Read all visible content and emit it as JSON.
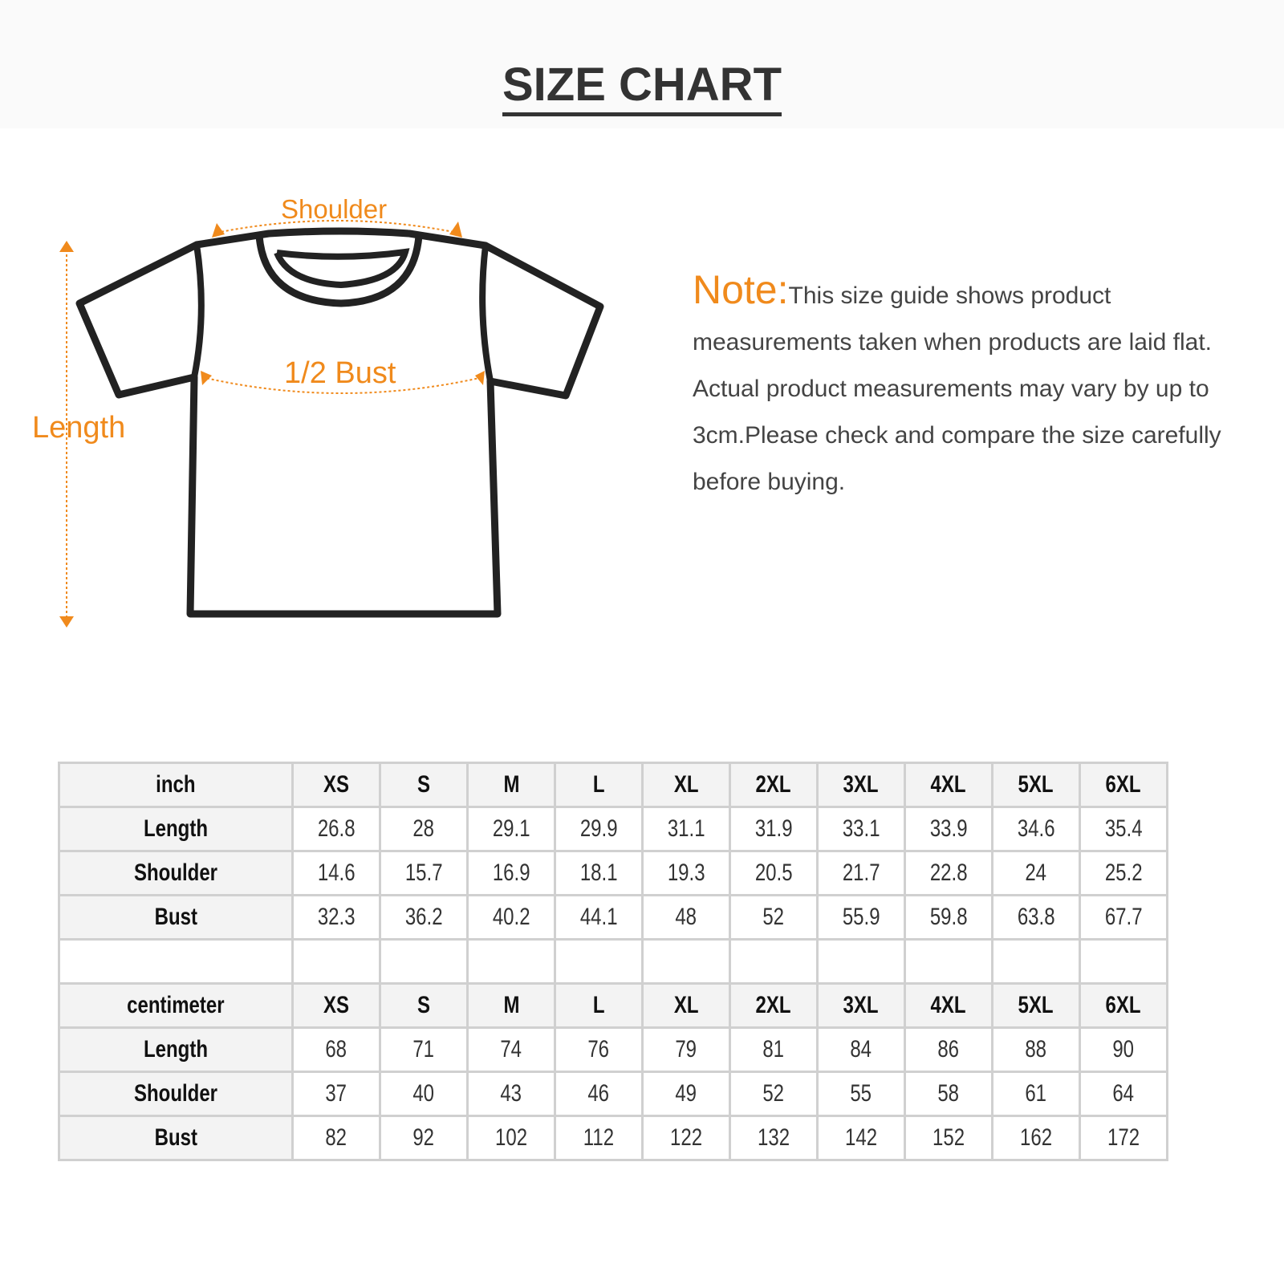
{
  "title": "SIZE CHART",
  "diagram": {
    "shoulder_label": "Shoulder",
    "bust_label": "1/2 Bust",
    "length_label": "Length",
    "accent_color": "#f08a1c"
  },
  "note": {
    "heading": "Note:",
    "text": "This size guide shows product measurements taken when products are laid flat. Actual product measurements may vary by up to 3cm.Please check and compare the size carefully before buying."
  },
  "sizes": [
    "XS",
    "S",
    "M",
    "L",
    "XL",
    "2XL",
    "3XL",
    "4XL",
    "5XL",
    "6XL"
  ],
  "inch_table": {
    "unit": "inch",
    "rows": [
      {
        "label": "Length",
        "values": [
          "26.8",
          "28",
          "29.1",
          "29.9",
          "31.1",
          "31.9",
          "33.1",
          "33.9",
          "34.6",
          "35.4"
        ]
      },
      {
        "label": "Shoulder",
        "values": [
          "14.6",
          "15.7",
          "16.9",
          "18.1",
          "19.3",
          "20.5",
          "21.7",
          "22.8",
          "24",
          "25.2"
        ]
      },
      {
        "label": "Bust",
        "values": [
          "32.3",
          "36.2",
          "40.2",
          "44.1",
          "48",
          "52",
          "55.9",
          "59.8",
          "63.8",
          "67.7"
        ]
      }
    ]
  },
  "cm_table": {
    "unit": "centimeter",
    "rows": [
      {
        "label": "Length",
        "values": [
          "68",
          "71",
          "74",
          "76",
          "79",
          "81",
          "84",
          "86",
          "88",
          "90"
        ]
      },
      {
        "label": "Shoulder",
        "values": [
          "37",
          "40",
          "43",
          "46",
          "49",
          "52",
          "55",
          "58",
          "61",
          "64"
        ]
      },
      {
        "label": "Bust",
        "values": [
          "82",
          "92",
          "102",
          "112",
          "122",
          "132",
          "142",
          "152",
          "162",
          "172"
        ]
      }
    ]
  }
}
